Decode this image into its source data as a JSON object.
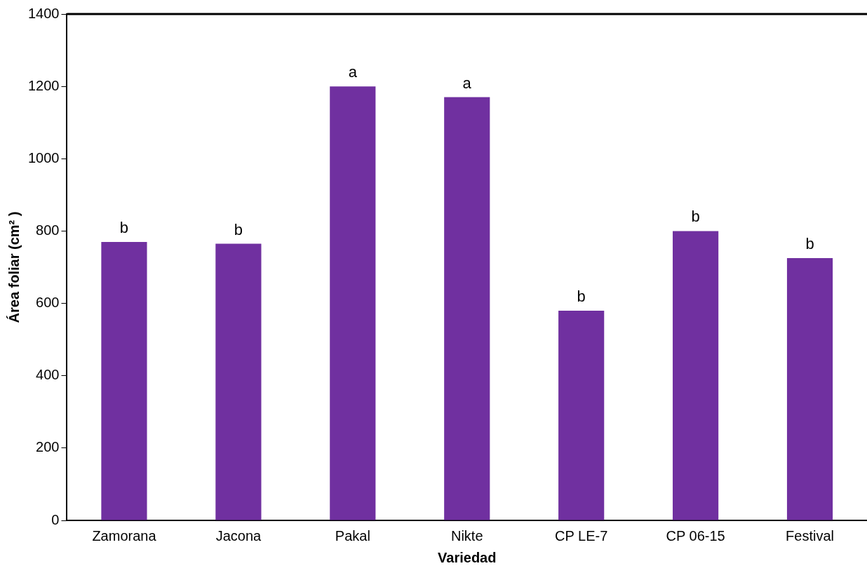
{
  "chart_data": {
    "type": "bar",
    "xlabel": "Variedad",
    "ylabel": "Área foliar (cm² )",
    "categories": [
      "Zamorana",
      "Jacona",
      "Pakal",
      "Nikte",
      "CP LE-7",
      "CP 06-15",
      "Festival"
    ],
    "values": [
      770,
      765,
      1200,
      1170,
      580,
      800,
      725
    ],
    "color": "#7030a0",
    "ylim": [
      0,
      1400
    ],
    "yticks": [
      0,
      200,
      400,
      600,
      800,
      1000,
      1200,
      1400
    ],
    "grid": false,
    "legend": false,
    "annotations": [
      {
        "text": "b",
        "x": "Zamorana",
        "y": 770
      },
      {
        "text": "b",
        "x": "Jacona",
        "y": 765
      },
      {
        "text": "a",
        "x": "Pakal",
        "y": 1200
      },
      {
        "text": "a",
        "x": "Nikte",
        "y": 1170
      },
      {
        "text": "b",
        "x": "CP LE-7",
        "y": 580
      },
      {
        "text": "b",
        "x": "CP 06-15",
        "y": 800
      },
      {
        "text": "b",
        "x": "Festival",
        "y": 725
      }
    ]
  }
}
